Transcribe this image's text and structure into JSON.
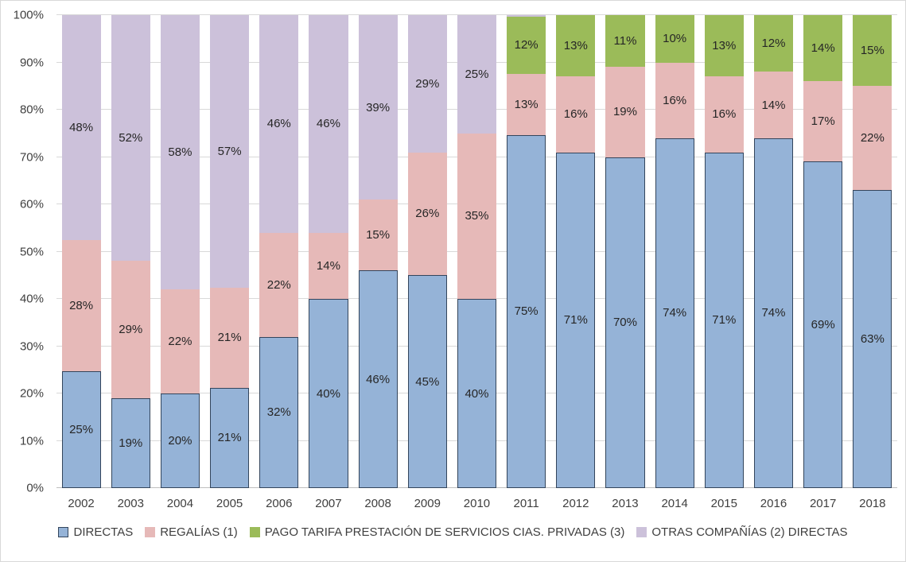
{
  "chart_data": {
    "type": "bar",
    "stacked": true,
    "percent_axis": true,
    "title": "",
    "xlabel": "",
    "ylabel": "",
    "ylim": [
      0,
      100
    ],
    "grid": true,
    "legend_position": "bottom",
    "label_min_value_for_display": 5,
    "categories": [
      "2002",
      "2003",
      "2004",
      "2005",
      "2006",
      "2007",
      "2008",
      "2009",
      "2010",
      "2011",
      "2012",
      "2013",
      "2014",
      "2015",
      "2016",
      "2017",
      "2018"
    ],
    "yticks": [
      "0%",
      "10%",
      "20%",
      "30%",
      "40%",
      "50%",
      "60%",
      "70%",
      "80%",
      "90%",
      "100%"
    ],
    "series": [
      {
        "name": "DIRECTAS",
        "color": "#95B3D7",
        "border_color": "#33455C",
        "values": [
          25,
          19,
          20,
          21,
          32,
          40,
          46,
          45,
          40,
          75,
          71,
          70,
          74,
          71,
          74,
          69,
          63
        ]
      },
      {
        "name": "REGALÍAS (1)",
        "color": "#E6B9B8",
        "values": [
          28,
          29,
          22,
          21,
          22,
          14,
          15,
          26,
          35,
          13,
          16,
          19,
          16,
          16,
          14,
          17,
          22
        ]
      },
      {
        "name": "PAGO TARIFA PRESTACIÓN DE SERVICIOS CIAS. PRIVADAS (3)",
        "color": "#9BBB59",
        "values": [
          0,
          0,
          0,
          0,
          0,
          0,
          0,
          0,
          0,
          12,
          13,
          11,
          10,
          13,
          12,
          14,
          15
        ]
      },
      {
        "name": "OTRAS COMPAÑÍAS (2) DIRECTAS",
        "color": "#CCC1DA",
        "values": [
          48,
          52,
          58,
          57,
          46,
          46,
          39,
          29,
          25,
          0.4,
          0,
          0,
          0,
          0,
          0,
          0,
          0
        ]
      }
    ],
    "colors": {
      "gridline": "#D9D9D9",
      "axis_line": "#BFBFBF",
      "axis_text": "#3F3F3F",
      "data_label_text": "#262626",
      "background": "#FFFFFF",
      "frame_border": "#D8D8D8"
    }
  }
}
